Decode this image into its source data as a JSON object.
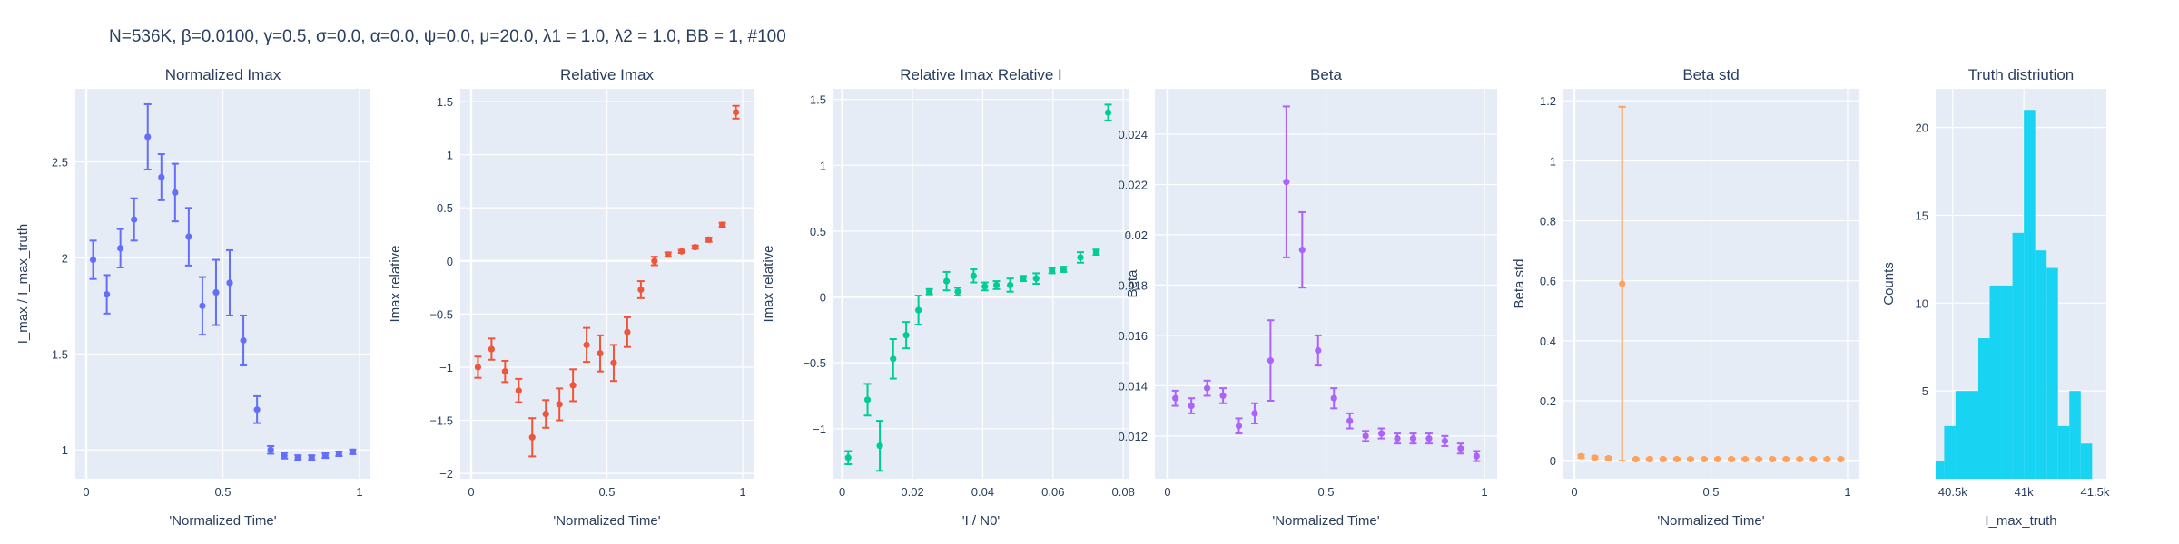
{
  "suptitle": "N=536K, β=0.0100, γ=0.5, σ=0.0,  α=0.0, ψ=0.0, μ=20.0, λ1 = 1.0, λ2 = 1.0, BB = 1, #100",
  "chart_data": [
    {
      "type": "scatter",
      "title": "Normalized Imax",
      "xlabel": "'Normalized Time'",
      "ylabel": "I_max / I_max_truth",
      "color": "#636efa",
      "xlim": [
        -0.04,
        1.04
      ],
      "ylim": [
        0.85,
        2.88
      ],
      "xticks": [
        0,
        0.5,
        1
      ],
      "xtick_labels": [
        "0",
        "0.5",
        "1"
      ],
      "yticks": [
        1,
        1.5,
        2,
        2.5
      ],
      "ytick_labels": [
        "1",
        "1.5",
        "2",
        "2.5"
      ],
      "x": [
        0.025,
        0.075,
        0.125,
        0.175,
        0.225,
        0.275,
        0.325,
        0.375,
        0.425,
        0.475,
        0.525,
        0.575,
        0.625,
        0.675,
        0.725,
        0.775,
        0.825,
        0.875,
        0.925,
        0.975
      ],
      "y": [
        1.99,
        1.81,
        2.05,
        2.2,
        2.63,
        2.42,
        2.34,
        2.11,
        1.75,
        1.82,
        1.87,
        1.57,
        1.21,
        1.0,
        0.97,
        0.96,
        0.96,
        0.97,
        0.98,
        0.99
      ],
      "err": [
        0.1,
        0.1,
        0.1,
        0.11,
        0.17,
        0.12,
        0.15,
        0.15,
        0.15,
        0.17,
        0.17,
        0.13,
        0.07,
        0.02,
        0.015,
        0.012,
        0.012,
        0.012,
        0.012,
        0.012
      ]
    },
    {
      "type": "scatter",
      "title": "Relative Imax",
      "xlabel": "'Normalized Time'",
      "ylabel": "Imax relative",
      "color": "#ef553b",
      "xlim": [
        -0.04,
        1.04
      ],
      "ylim": [
        -2.05,
        1.62
      ],
      "xticks": [
        0,
        0.5,
        1
      ],
      "xtick_labels": [
        "0",
        "0.5",
        "1"
      ],
      "yticks": [
        -2,
        -1.5,
        -1,
        -0.5,
        0,
        0.5,
        1,
        1.5
      ],
      "ytick_labels": [
        "−2",
        "−1.5",
        "−1",
        "−0.5",
        "0",
        "0.5",
        "1",
        "1.5"
      ],
      "x": [
        0.025,
        0.075,
        0.125,
        0.175,
        0.225,
        0.275,
        0.325,
        0.375,
        0.425,
        0.475,
        0.525,
        0.575,
        0.625,
        0.675,
        0.725,
        0.775,
        0.825,
        0.875,
        0.925,
        0.975
      ],
      "y": [
        -1.0,
        -0.83,
        -1.04,
        -1.22,
        -1.66,
        -1.44,
        -1.35,
        -1.17,
        -0.79,
        -0.87,
        -0.96,
        -0.67,
        -0.27,
        0.0,
        0.06,
        0.09,
        0.13,
        0.2,
        0.34,
        1.4
      ],
      "err": [
        0.1,
        0.1,
        0.1,
        0.11,
        0.18,
        0.13,
        0.15,
        0.15,
        0.16,
        0.17,
        0.17,
        0.14,
        0.08,
        0.04,
        0.02,
        0.015,
        0.015,
        0.02,
        0.02,
        0.06
      ]
    },
    {
      "type": "scatter",
      "title": "Relative Imax Relative I",
      "xlabel": "'I / N0'",
      "ylabel": "Imax relative",
      "color": "#00cc96",
      "xlim": [
        -0.0025,
        0.0815
      ],
      "ylim": [
        -1.38,
        1.58
      ],
      "xticks": [
        0,
        0.02,
        0.04,
        0.06,
        0.08
      ],
      "xtick_labels": [
        "0",
        "0.02",
        "0.04",
        "0.06",
        "0.08"
      ],
      "yticks": [
        -1,
        -0.5,
        0,
        0.5,
        1,
        1.5
      ],
      "ytick_labels": [
        "−1",
        "−0.5",
        "0",
        "0.5",
        "1",
        "1.5"
      ],
      "x": [
        0.0017,
        0.0072,
        0.0107,
        0.0145,
        0.0182,
        0.0217,
        0.0248,
        0.0297,
        0.0329,
        0.0374,
        0.0406,
        0.0439,
        0.0478,
        0.0515,
        0.0552,
        0.0597,
        0.063,
        0.0678,
        0.0723,
        0.0757
      ],
      "y": [
        -1.22,
        -0.78,
        -1.13,
        -0.47,
        -0.29,
        -0.1,
        0.04,
        0.12,
        0.04,
        0.16,
        0.08,
        0.09,
        0.09,
        0.14,
        0.14,
        0.2,
        0.21,
        0.3,
        0.34,
        1.4
      ],
      "err": [
        0.05,
        0.12,
        0.19,
        0.15,
        0.1,
        0.11,
        0.02,
        0.07,
        0.03,
        0.05,
        0.03,
        0.03,
        0.05,
        0.02,
        0.04,
        0.02,
        0.02,
        0.04,
        0.02,
        0.06
      ]
    },
    {
      "type": "scatter",
      "title": "Beta",
      "xlabel": "'Normalized Time'",
      "ylabel": "Beta",
      "color": "#ab63fa",
      "xlim": [
        -0.04,
        1.04
      ],
      "ylim": [
        0.0103,
        0.0258
      ],
      "xticks": [
        0,
        0.5,
        1
      ],
      "xtick_labels": [
        "0",
        "0.5",
        "1"
      ],
      "yticks": [
        0.012,
        0.014,
        0.016,
        0.018,
        0.02,
        0.022,
        0.024
      ],
      "ytick_labels": [
        "0.012",
        "0.014",
        "0.016",
        "0.018",
        "0.02",
        "0.022",
        "0.024"
      ],
      "x": [
        0.025,
        0.075,
        0.125,
        0.175,
        0.225,
        0.275,
        0.325,
        0.375,
        0.425,
        0.475,
        0.525,
        0.575,
        0.625,
        0.675,
        0.725,
        0.775,
        0.825,
        0.875,
        0.925,
        0.975
      ],
      "y": [
        0.0135,
        0.0132,
        0.0139,
        0.0136,
        0.0124,
        0.0129,
        0.015,
        0.0221,
        0.0194,
        0.0154,
        0.0135,
        0.0126,
        0.012,
        0.0121,
        0.0119,
        0.0119,
        0.0119,
        0.0118,
        0.0115,
        0.0112
      ],
      "err": [
        0.0003,
        0.0003,
        0.0003,
        0.0003,
        0.0003,
        0.0004,
        0.0016,
        0.003,
        0.0015,
        0.0006,
        0.0004,
        0.0003,
        0.0002,
        0.0002,
        0.0002,
        0.0002,
        0.0002,
        0.0002,
        0.0002,
        0.0002
      ]
    },
    {
      "type": "scatter",
      "title": "Beta std",
      "xlabel": "'Normalized Time'",
      "ylabel": "Beta std",
      "color": "#ffa15a",
      "xlim": [
        -0.04,
        1.04
      ],
      "ylim": [
        -0.06,
        1.24
      ],
      "xticks": [
        0,
        0.5,
        1
      ],
      "xtick_labels": [
        "0",
        "0.5",
        "1"
      ],
      "yticks": [
        0,
        0.2,
        0.4,
        0.6,
        0.8,
        1,
        1.2
      ],
      "ytick_labels": [
        "0",
        "0.2",
        "0.4",
        "0.6",
        "0.8",
        "1",
        "1.2"
      ],
      "x": [
        0.025,
        0.075,
        0.125,
        0.175,
        0.225,
        0.275,
        0.325,
        0.375,
        0.425,
        0.475,
        0.525,
        0.575,
        0.625,
        0.675,
        0.725,
        0.775,
        0.825,
        0.875,
        0.925,
        0.975
      ],
      "y": [
        0.015,
        0.01,
        0.008,
        0.59,
        0.005,
        0.005,
        0.005,
        0.005,
        0.005,
        0.005,
        0.005,
        0.005,
        0.005,
        0.005,
        0.005,
        0.005,
        0.005,
        0.005,
        0.005,
        0.005
      ],
      "err": [
        0.005,
        0.004,
        0.004,
        0.59,
        0.003,
        0.003,
        0.003,
        0.003,
        0.003,
        0.003,
        0.003,
        0.003,
        0.003,
        0.003,
        0.003,
        0.003,
        0.003,
        0.003,
        0.003,
        0.003
      ]
    },
    {
      "type": "histogram",
      "title": "Truth distriution",
      "xlabel": "I_max_truth",
      "ylabel": "Counts",
      "color": "#19d3f3",
      "xlim": [
        40380,
        41580
      ],
      "ylim": [
        0,
        22.2
      ],
      "xticks": [
        40500,
        41000,
        41500
      ],
      "xtick_labels": [
        "40.5k",
        "41k",
        "41.5k"
      ],
      "yticks": [
        5,
        10,
        15,
        20
      ],
      "ytick_labels": [
        "5",
        "10",
        "15",
        "20"
      ],
      "bin_edges": [
        40380,
        40440,
        40520,
        40600,
        40680,
        40760,
        40840,
        40920,
        41000,
        41080,
        41160,
        41240,
        41320,
        41400,
        41480,
        41580
      ],
      "counts": [
        1,
        3,
        5,
        5,
        8,
        11,
        11,
        14,
        21,
        13,
        12,
        3,
        5,
        2,
        0
      ]
    }
  ]
}
